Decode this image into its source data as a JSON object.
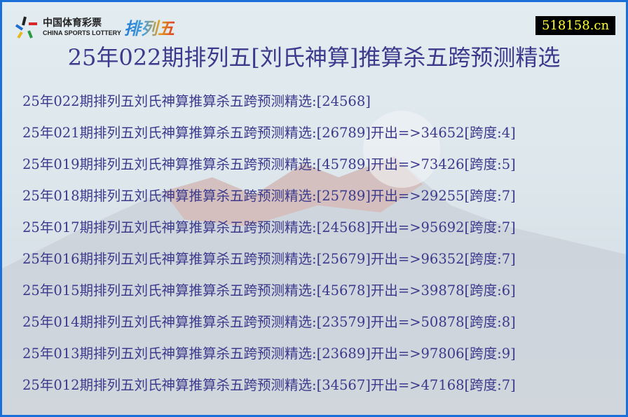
{
  "logo": {
    "cn": "中国体育彩票",
    "en": "CHINA SPORTS LOTTERY",
    "game": "排列五"
  },
  "site_badge": "518158.cn",
  "title": "25年022期排列五[刘氏神算]推算杀五跨预测精选",
  "rows": [
    "25年022期排列五刘氏神算推算杀五跨预测精选:[24568]",
    "25年021期排列五刘氏神算推算杀五跨预测精选:[26789]开出=>34652[跨度:4]",
    "25年019期排列五刘氏神算推算杀五跨预测精选:[45789]开出=>73426[跨度:5]",
    "25年018期排列五刘氏神算推算杀五跨预测精选:[25789]开出=>29255[跨度:7]",
    "25年017期排列五刘氏神算推算杀五跨预测精选:[24568]开出=>95692[跨度:7]",
    "25年016期排列五刘氏神算推算杀五跨预测精选:[25679]开出=>96352[跨度:7]",
    "25年015期排列五刘氏神算推算杀五跨预测精选:[45678]开出=>39878[跨度:6]",
    "25年014期排列五刘氏神算推算杀五跨预测精选:[23579]开出=>50878[跨度:8]",
    "25年013期排列五刘氏神算推算杀五跨预测精选:[23689]开出=>97806[跨度:9]",
    "25年012期排列五刘氏神算推算杀五跨预测精选:[34567]开出=>47168[跨度:7]"
  ]
}
